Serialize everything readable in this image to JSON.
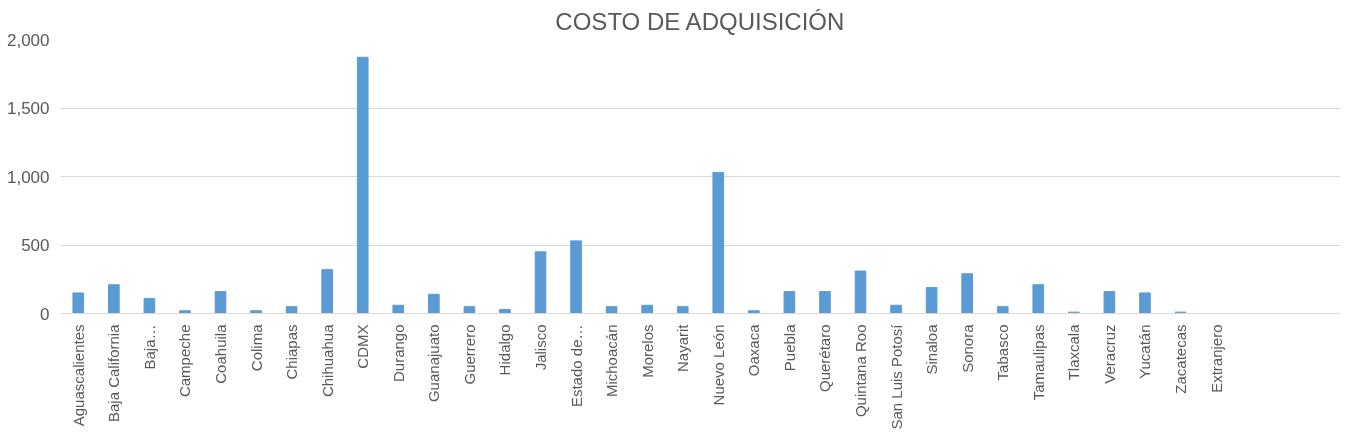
{
  "chart_data": {
    "type": "bar",
    "title": "COSTO DE ADQUISICIÓN",
    "categories": [
      "Aguascalientes",
      "Baja California",
      "Baja…",
      "Campeche",
      "Coahuila",
      "Colima",
      "Chiapas",
      "Chihuahua",
      "CDMX",
      "Durango",
      "Guanajuato",
      "Guerrero",
      "Hidalgo",
      "Jalisco",
      "Estado de…",
      "Michoacán",
      "Morelos",
      "Nayarit",
      "Nuevo León",
      "Oaxaca",
      "Puebla",
      "Querétaro",
      "Quintana Roo",
      "San Luis Potosí",
      "Sinaloa",
      "Sonora",
      "Tabasco",
      "Tamaulipas",
      "Tlaxcala",
      "Veracruz",
      "Yucatán",
      "Zacatecas",
      "Extranjero",
      null,
      null,
      null
    ],
    "values": [
      150,
      210,
      110,
      20,
      160,
      20,
      50,
      320,
      1870,
      60,
      140,
      50,
      30,
      450,
      530,
      50,
      60,
      50,
      1030,
      20,
      160,
      160,
      310,
      60,
      190,
      290,
      50,
      210,
      10,
      160,
      150,
      10,
      0,
      null,
      null,
      null
    ],
    "color": "#5b9bd5",
    "ylim": [
      0,
      2000
    ],
    "yticks": [
      {
        "value": 0,
        "label": "0"
      },
      {
        "value": 500,
        "label": "500"
      },
      {
        "value": 1000,
        "label": "1,000"
      },
      {
        "value": 1500,
        "label": "1,500"
      },
      {
        "value": 2000,
        "label": "2,000"
      }
    ],
    "grid": "y"
  }
}
